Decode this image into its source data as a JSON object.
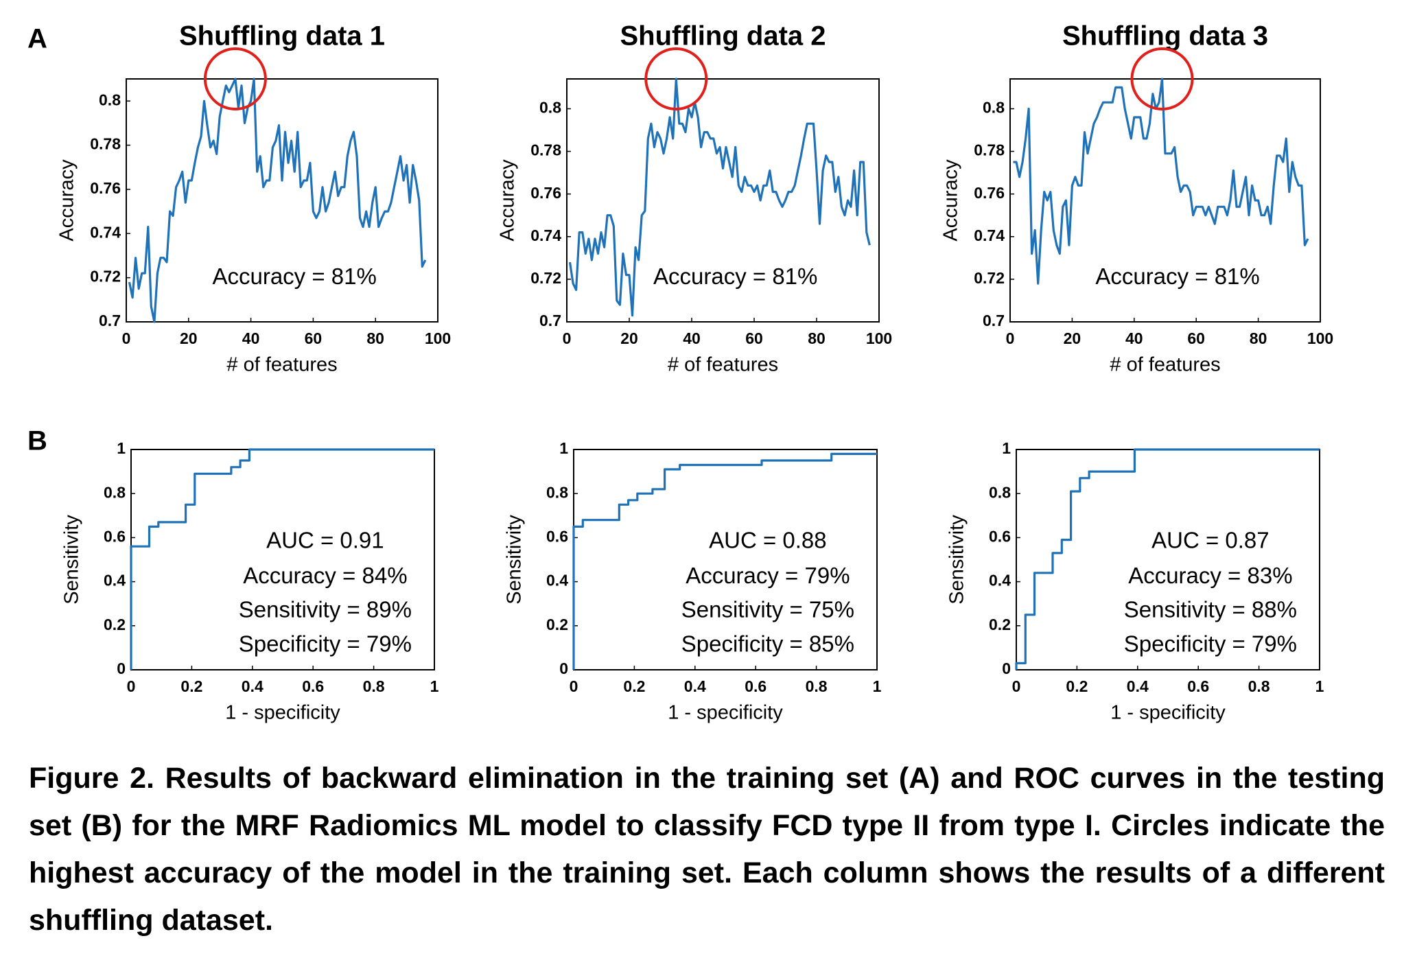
{
  "panel_labels": [
    "A",
    "B"
  ],
  "chart_data": [
    {
      "type": "line",
      "title": "Shuffling data 1",
      "xlabel": "# of features",
      "ylabel": "Accuracy",
      "color": "#1f72b8",
      "highlight_color": "#e0201b",
      "x": [
        1,
        2,
        3,
        4,
        5,
        6,
        7,
        8,
        9,
        10,
        11,
        12,
        13,
        14,
        15,
        16,
        17,
        18,
        19,
        20,
        21,
        22,
        23,
        24,
        25,
        26,
        27,
        28,
        29,
        30,
        31,
        32,
        33,
        34,
        35,
        36,
        37,
        38,
        39,
        40,
        41,
        42,
        43,
        44,
        45,
        46,
        47,
        48,
        49,
        50,
        51,
        52,
        53,
        54,
        55,
        56,
        57,
        58,
        59,
        60,
        61,
        62,
        63,
        64,
        65,
        66,
        67,
        68,
        69,
        70,
        71,
        72,
        73,
        74,
        75,
        76,
        77,
        78,
        79,
        80,
        81,
        82,
        83,
        84,
        85,
        86,
        87,
        88,
        89,
        90,
        91,
        92,
        93,
        94,
        95,
        96
      ],
      "values": [
        0.718,
        0.711,
        0.729,
        0.715,
        0.722,
        0.722,
        0.743,
        0.707,
        0.7,
        0.722,
        0.729,
        0.729,
        0.727,
        0.75,
        0.748,
        0.761,
        0.764,
        0.768,
        0.754,
        0.764,
        0.764,
        0.772,
        0.779,
        0.784,
        0.8,
        0.789,
        0.779,
        0.782,
        0.776,
        0.793,
        0.8,
        0.807,
        0.804,
        0.807,
        0.81,
        0.797,
        0.807,
        0.79,
        0.797,
        0.8,
        0.81,
        0.768,
        0.775,
        0.761,
        0.764,
        0.764,
        0.779,
        0.782,
        0.789,
        0.764,
        0.786,
        0.772,
        0.782,
        0.768,
        0.786,
        0.761,
        0.764,
        0.764,
        0.772,
        0.75,
        0.747,
        0.75,
        0.761,
        0.75,
        0.754,
        0.761,
        0.768,
        0.757,
        0.761,
        0.761,
        0.775,
        0.782,
        0.786,
        0.775,
        0.747,
        0.743,
        0.75,
        0.743,
        0.754,
        0.761,
        0.743,
        0.747,
        0.75,
        0.75,
        0.754,
        0.761,
        0.768,
        0.775,
        0.764,
        0.771,
        0.754,
        0.771,
        0.764,
        0.755,
        0.725,
        0.728
      ],
      "xlim": [
        0,
        100
      ],
      "xticks": [
        0,
        20,
        40,
        60,
        80,
        100
      ],
      "ylim": [
        0.7,
        0.81
      ],
      "yticks": [
        0.7,
        0.72,
        0.74,
        0.76,
        0.78,
        0.8
      ],
      "annotations": [
        {
          "text": "Accuracy = 81%",
          "color": "#e0201b"
        }
      ]
    },
    {
      "type": "line",
      "title": "Shuffling data 2",
      "xlabel": "# of features",
      "ylabel": "Accuracy",
      "color": "#1f72b8",
      "highlight_color": "#e0201b",
      "x": [
        1,
        2,
        3,
        4,
        5,
        6,
        7,
        8,
        9,
        10,
        11,
        12,
        13,
        14,
        15,
        16,
        17,
        18,
        19,
        20,
        21,
        22,
        23,
        24,
        25,
        26,
        27,
        28,
        29,
        30,
        31,
        32,
        33,
        34,
        35,
        36,
        37,
        38,
        39,
        40,
        41,
        42,
        43,
        44,
        45,
        46,
        47,
        48,
        49,
        50,
        51,
        52,
        53,
        54,
        55,
        56,
        57,
        58,
        59,
        60,
        61,
        62,
        63,
        64,
        65,
        66,
        67,
        68,
        69,
        70,
        71,
        72,
        73,
        74,
        75,
        76,
        77,
        78,
        79,
        80,
        81,
        82,
        83,
        84,
        85,
        86,
        87,
        88,
        89,
        90,
        91,
        92,
        93,
        94,
        95,
        96,
        97
      ],
      "values": [
        0.728,
        0.718,
        0.715,
        0.742,
        0.742,
        0.732,
        0.739,
        0.729,
        0.739,
        0.732,
        0.742,
        0.735,
        0.75,
        0.75,
        0.745,
        0.71,
        0.708,
        0.732,
        0.722,
        0.722,
        0.703,
        0.735,
        0.729,
        0.75,
        0.752,
        0.786,
        0.793,
        0.782,
        0.789,
        0.786,
        0.779,
        0.786,
        0.796,
        0.786,
        0.814,
        0.793,
        0.793,
        0.789,
        0.8,
        0.796,
        0.803,
        0.796,
        0.782,
        0.789,
        0.789,
        0.786,
        0.786,
        0.779,
        0.782,
        0.772,
        0.782,
        0.775,
        0.768,
        0.782,
        0.764,
        0.761,
        0.768,
        0.764,
        0.764,
        0.761,
        0.764,
        0.757,
        0.764,
        0.764,
        0.771,
        0.761,
        0.761,
        0.757,
        0.754,
        0.757,
        0.761,
        0.761,
        0.764,
        0.771,
        0.778,
        0.786,
        0.793,
        0.793,
        0.793,
        0.771,
        0.746,
        0.771,
        0.778,
        0.775,
        0.775,
        0.761,
        0.768,
        0.754,
        0.75,
        0.757,
        0.754,
        0.771,
        0.75,
        0.775,
        0.775,
        0.742,
        0.736
      ],
      "xlim": [
        0,
        100
      ],
      "xticks": [
        0,
        20,
        40,
        60,
        80,
        100
      ],
      "ylim": [
        0.7,
        0.814
      ],
      "yticks": [
        0.7,
        0.72,
        0.74,
        0.76,
        0.78,
        0.8
      ],
      "annotations": [
        {
          "text": "Accuracy = 81%",
          "color": "#e0201b"
        }
      ]
    },
    {
      "type": "line",
      "title": "Shuffling data 3",
      "xlabel": "# of features",
      "ylabel": "Accuracy",
      "color": "#1f72b8",
      "highlight_color": "#e0201b",
      "x": [
        1,
        2,
        3,
        4,
        5,
        6,
        7,
        8,
        9,
        10,
        11,
        12,
        13,
        14,
        15,
        16,
        17,
        18,
        19,
        20,
        21,
        22,
        23,
        24,
        25,
        26,
        27,
        28,
        29,
        30,
        31,
        32,
        33,
        34,
        35,
        36,
        37,
        38,
        39,
        40,
        41,
        42,
        43,
        44,
        45,
        46,
        47,
        48,
        49,
        50,
        51,
        52,
        53,
        54,
        55,
        56,
        57,
        58,
        59,
        60,
        61,
        62,
        63,
        64,
        65,
        66,
        67,
        68,
        69,
        70,
        71,
        72,
        73,
        74,
        75,
        76,
        77,
        78,
        79,
        80,
        81,
        82,
        83,
        84,
        85,
        86,
        87,
        88,
        89,
        90,
        91,
        92,
        93,
        94,
        95,
        96
      ],
      "values": [
        0.775,
        0.775,
        0.768,
        0.775,
        0.786,
        0.8,
        0.732,
        0.743,
        0.718,
        0.743,
        0.761,
        0.757,
        0.761,
        0.743,
        0.736,
        0.732,
        0.754,
        0.757,
        0.736,
        0.764,
        0.768,
        0.764,
        0.764,
        0.789,
        0.779,
        0.786,
        0.793,
        0.796,
        0.8,
        0.803,
        0.803,
        0.803,
        0.803,
        0.81,
        0.81,
        0.81,
        0.8,
        0.793,
        0.786,
        0.796,
        0.796,
        0.796,
        0.786,
        0.786,
        0.793,
        0.807,
        0.8,
        0.803,
        0.814,
        0.779,
        0.779,
        0.779,
        0.782,
        0.768,
        0.761,
        0.764,
        0.764,
        0.761,
        0.75,
        0.754,
        0.754,
        0.754,
        0.75,
        0.754,
        0.75,
        0.746,
        0.754,
        0.754,
        0.754,
        0.75,
        0.757,
        0.771,
        0.754,
        0.754,
        0.761,
        0.768,
        0.75,
        0.764,
        0.757,
        0.757,
        0.75,
        0.75,
        0.754,
        0.746,
        0.764,
        0.778,
        0.778,
        0.775,
        0.786,
        0.761,
        0.775,
        0.768,
        0.764,
        0.764,
        0.736,
        0.739
      ],
      "xlim": [
        0,
        100
      ],
      "xticks": [
        0,
        20,
        40,
        60,
        80,
        100
      ],
      "ylim": [
        0.7,
        0.814
      ],
      "yticks": [
        0.7,
        0.72,
        0.74,
        0.76,
        0.78,
        0.8
      ],
      "annotations": [
        {
          "text": "Accuracy = 81%",
          "color": "#e0201b"
        }
      ]
    },
    {
      "type": "roc",
      "xlabel": "1 - specificity",
      "ylabel": "Sensitivity",
      "color": "#1f72b8",
      "x": [
        0,
        0,
        0.06,
        0.06,
        0.09,
        0.09,
        0.18,
        0.18,
        0.21,
        0.21,
        0.33,
        0.33,
        0.36,
        0.36,
        0.39,
        0.39,
        1
      ],
      "values": [
        0,
        0.56,
        0.56,
        0.65,
        0.65,
        0.67,
        0.67,
        0.75,
        0.75,
        0.89,
        0.89,
        0.92,
        0.92,
        0.95,
        0.95,
        1,
        1
      ],
      "xlim": [
        0,
        1
      ],
      "xticks": [
        0,
        0.2,
        0.4,
        0.6,
        0.8,
        1
      ],
      "ylim": [
        0,
        1
      ],
      "yticks": [
        0,
        0.2,
        0.4,
        0.6,
        0.8,
        1
      ],
      "annotations": [
        {
          "text": "AUC = 0.91",
          "color": "#e0201b"
        },
        {
          "text": "Accuracy = 84%",
          "color": "#000000"
        },
        {
          "text": "Sensitivity = 89%",
          "color": "#000000"
        },
        {
          "text": "Specificity = 79%",
          "color": "#000000"
        }
      ]
    },
    {
      "type": "roc",
      "xlabel": "1 - specificity",
      "ylabel": "Sensitivity",
      "color": "#1f72b8",
      "x": [
        0,
        0,
        0.03,
        0.03,
        0.15,
        0.15,
        0.18,
        0.18,
        0.21,
        0.21,
        0.26,
        0.26,
        0.3,
        0.3,
        0.35,
        0.35,
        0.62,
        0.62,
        0.85,
        0.85,
        1
      ],
      "values": [
        0,
        0.65,
        0.65,
        0.68,
        0.68,
        0.75,
        0.75,
        0.77,
        0.77,
        0.8,
        0.8,
        0.82,
        0.82,
        0.91,
        0.91,
        0.93,
        0.93,
        0.95,
        0.95,
        0.98,
        0.98
      ],
      "xlim": [
        0,
        1
      ],
      "xticks": [
        0,
        0.2,
        0.4,
        0.6,
        0.8,
        1
      ],
      "ylim": [
        0,
        1
      ],
      "yticks": [
        0,
        0.2,
        0.4,
        0.6,
        0.8,
        1
      ],
      "annotations": [
        {
          "text": "AUC = 0.88",
          "color": "#e0201b"
        },
        {
          "text": "Accuracy = 79%",
          "color": "#000000"
        },
        {
          "text": "Sensitivity = 75%",
          "color": "#000000"
        },
        {
          "text": "Specificity = 85%",
          "color": "#000000"
        }
      ]
    },
    {
      "type": "roc",
      "xlabel": "1 - specificity",
      "ylabel": "Sensitivity",
      "color": "#1f72b8",
      "x": [
        0,
        0,
        0.03,
        0.03,
        0.06,
        0.06,
        0.12,
        0.12,
        0.15,
        0.15,
        0.18,
        0.18,
        0.21,
        0.21,
        0.24,
        0.24,
        0.39,
        0.39,
        1
      ],
      "values": [
        0,
        0.03,
        0.03,
        0.25,
        0.25,
        0.44,
        0.44,
        0.53,
        0.53,
        0.59,
        0.59,
        0.81,
        0.81,
        0.87,
        0.87,
        0.9,
        0.9,
        1,
        1
      ],
      "xlim": [
        0,
        1
      ],
      "xticks": [
        0,
        0.2,
        0.4,
        0.6,
        0.8,
        1
      ],
      "ylim": [
        0,
        1
      ],
      "yticks": [
        0,
        0.2,
        0.4,
        0.6,
        0.8,
        1
      ],
      "annotations": [
        {
          "text": "AUC = 0.87",
          "color": "#e0201b"
        },
        {
          "text": "Accuracy = 83%",
          "color": "#000000"
        },
        {
          "text": "Sensitivity = 88%",
          "color": "#000000"
        },
        {
          "text": "Specificity = 79%",
          "color": "#000000"
        }
      ]
    }
  ],
  "caption": "Figure 2. Results of backward elimination in the training set (A) and ROC curves in the testing set (B) for the MRF Radiomics ML model to classify FCD type II from type I. Circles indicate the highest accuracy of the model in the training set. Each column shows the results of a different shuffling dataset."
}
